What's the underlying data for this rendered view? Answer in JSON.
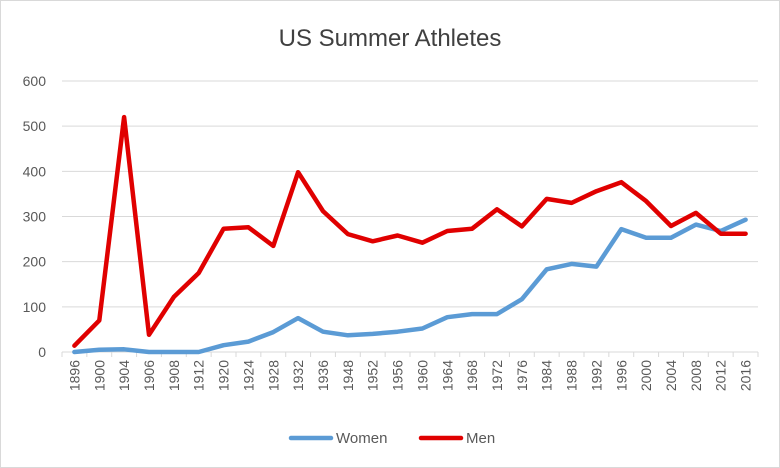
{
  "chart_data": {
    "type": "line",
    "title": "US Summer Athletes",
    "xlabel": "",
    "ylabel": "",
    "categories": [
      "1896",
      "1900",
      "1904",
      "1906",
      "1908",
      "1912",
      "1920",
      "1924",
      "1928",
      "1932",
      "1936",
      "1948",
      "1952",
      "1956",
      "1960",
      "1964",
      "1968",
      "1972",
      "1976",
      "1984",
      "1988",
      "1992",
      "1996",
      "2000",
      "2004",
      "2008",
      "2012",
      "2016"
    ],
    "ylim": [
      0,
      600
    ],
    "yticks": [
      0,
      100,
      200,
      300,
      400,
      500,
      600
    ],
    "grid": true,
    "legend_position": "bottom",
    "series": [
      {
        "name": "Women",
        "color": "#5b9bd5",
        "values": [
          0,
          5,
          6,
          0,
          0,
          0,
          15,
          23,
          44,
          75,
          45,
          37,
          40,
          45,
          52,
          77,
          84,
          84,
          117,
          183,
          195,
          189,
          272,
          253,
          253,
          282,
          268,
          293
        ]
      },
      {
        "name": "Men",
        "color": "#e00000",
        "values": [
          14,
          70,
          520,
          38,
          122,
          175,
          273,
          276,
          235,
          398,
          312,
          261,
          245,
          258,
          242,
          268,
          273,
          316,
          278,
          339,
          330,
          356,
          376,
          334,
          279,
          308,
          262,
          262
        ]
      }
    ]
  }
}
